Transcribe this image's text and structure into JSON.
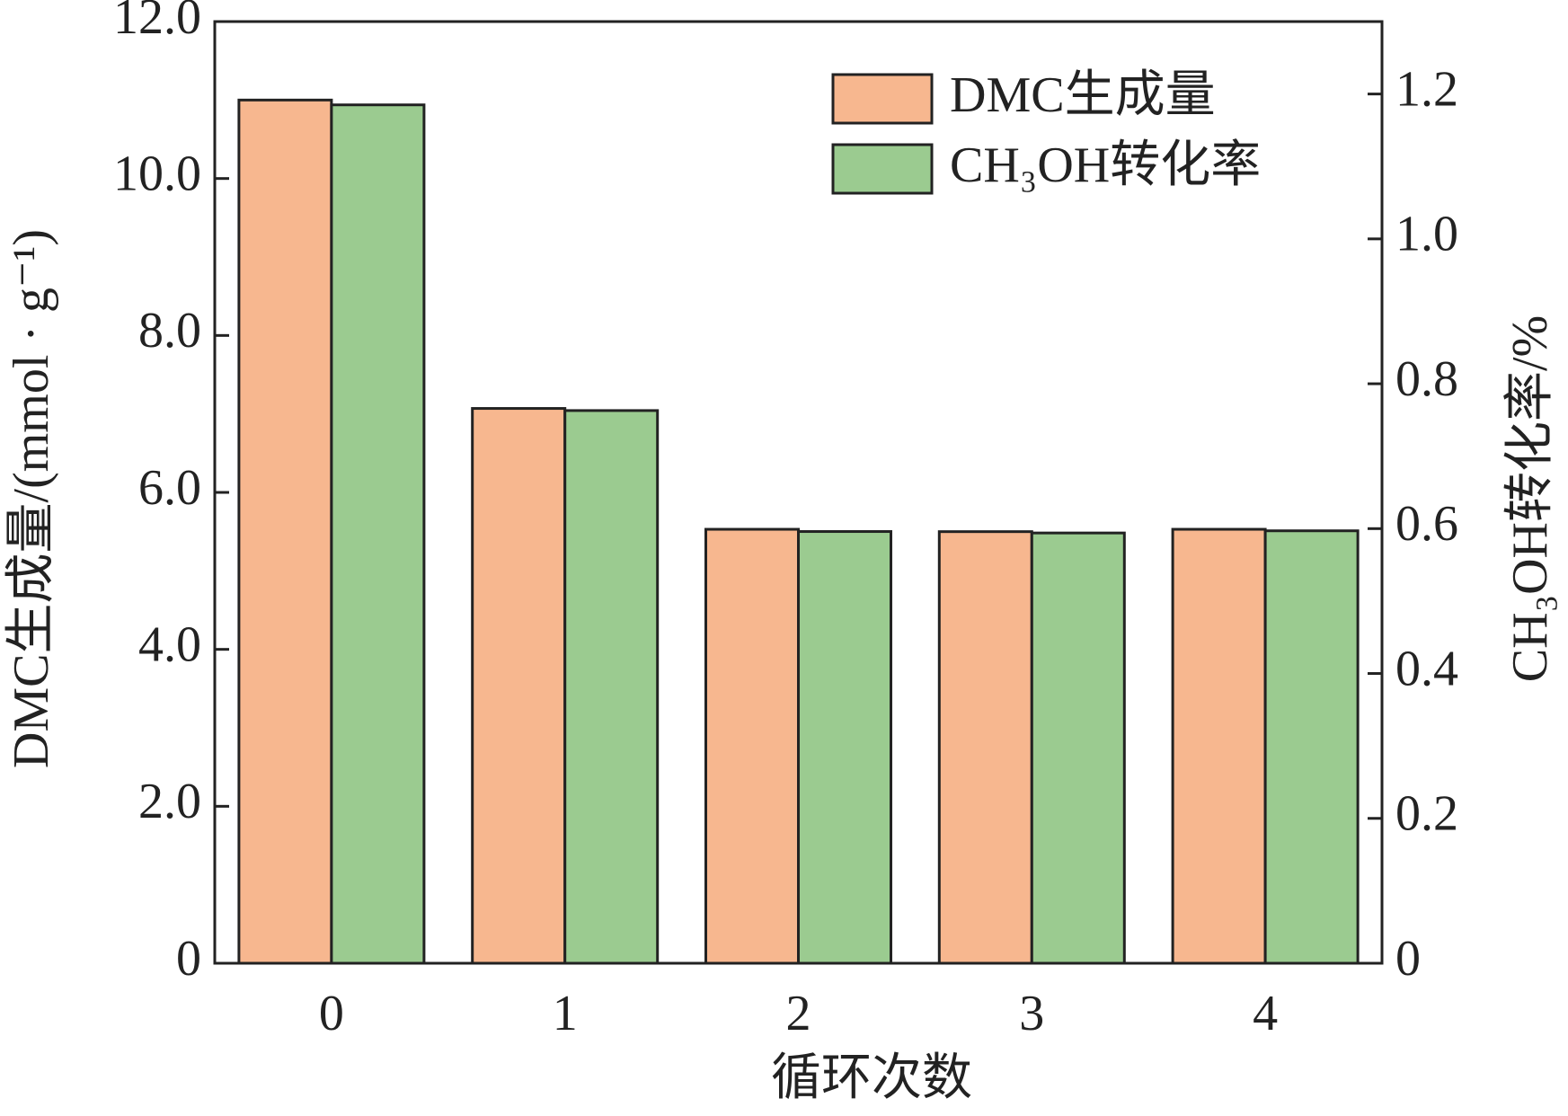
{
  "chart_data": {
    "type": "bar",
    "x_label": "循环次数",
    "y_label": "DMC生成量/(mmol · g⁻¹)",
    "y2_label": "CH₃OH转化率/%",
    "categories": [
      "0",
      "1",
      "2",
      "3",
      "4"
    ],
    "series": [
      {
        "name": "DMC生成量",
        "color": "#f7b78f",
        "values": [
          11.0,
          7.07,
          5.53,
          5.5,
          5.53
        ]
      },
      {
        "name": "CH₃OH转化率",
        "color": "#9bcb90",
        "axis": "y2",
        "values": [
          1.185,
          0.763,
          0.596,
          0.594,
          0.597
        ]
      }
    ],
    "ylim": [
      0,
      12
    ],
    "yticks": [
      0,
      {
        "value": 2,
        "label": "2.0"
      },
      {
        "value": 4,
        "label": "4.0"
      },
      {
        "value": 6,
        "label": "6.0"
      },
      {
        "value": 8,
        "label": "8.0"
      },
      {
        "value": 10,
        "label": "10.0"
      },
      {
        "value": 12,
        "label": "12.0"
      }
    ],
    "y2lim": [
      0,
      1.3
    ],
    "y2ticks": [
      0,
      0.2,
      0.4,
      0.6,
      0.8,
      {
        "value": 1,
        "label": "1.0"
      },
      1.2
    ],
    "legend": "upper right"
  }
}
